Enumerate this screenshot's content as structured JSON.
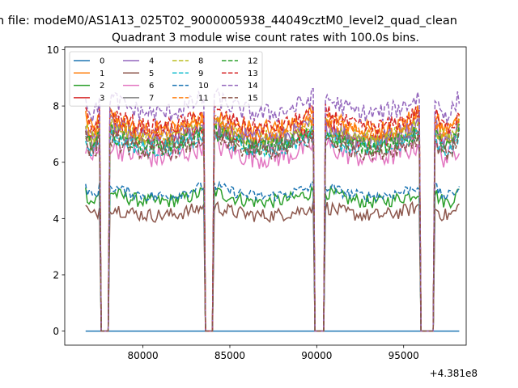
{
  "suptitle": "n file: modeM0/AS1A13_025T02_9000005938_44049cztM0_level2_quad_clean",
  "chart_data": {
    "type": "line",
    "title": "Quadrant 3 module wise count rates with 100.0s bins.",
    "xlabel": "",
    "ylabel": "",
    "x_offset_label": "+4.381e8",
    "xlim": [
      75500,
      98600
    ],
    "ylim": [
      -0.5,
      10.1
    ],
    "xticks": [
      80000,
      85000,
      90000,
      95000
    ],
    "xtick_labels": [
      "80000",
      "85000",
      "90000",
      "95000"
    ],
    "yticks": [
      0,
      2,
      4,
      6,
      8,
      10
    ],
    "ytick_labels": [
      "0",
      "2",
      "4",
      "6",
      "8",
      "10"
    ],
    "grid": false,
    "legend": {
      "placement": "top-left",
      "columns": 4
    },
    "x_start": 76700,
    "x_end": 98200,
    "bin_seconds": 100,
    "gaps": [
      [
        77550,
        78050
      ],
      [
        83550,
        84100
      ],
      [
        89850,
        90450
      ],
      [
        95900,
        96750
      ]
    ],
    "series": [
      {
        "name": "0",
        "color": "#1f77b4",
        "dash": "solid",
        "base": 0.0,
        "noise": 0.0
      },
      {
        "name": "1",
        "color": "#ff7f0e",
        "dash": "solid",
        "base": 7.3,
        "noise": 0.35
      },
      {
        "name": "2",
        "color": "#2ca02c",
        "dash": "solid",
        "base": 4.7,
        "noise": 0.25
      },
      {
        "name": "3",
        "color": "#d62728",
        "dash": "solid",
        "base": 6.9,
        "noise": 0.3
      },
      {
        "name": "4",
        "color": "#9467bd",
        "dash": "solid",
        "base": 7.0,
        "noise": 0.35
      },
      {
        "name": "5",
        "color": "#8c564b",
        "dash": "solid",
        "base": 4.2,
        "noise": 0.25
      },
      {
        "name": "6",
        "color": "#e377c2",
        "dash": "solid",
        "base": 6.3,
        "noise": 0.4
      },
      {
        "name": "7",
        "color": "#7f7f7f",
        "dash": "solid",
        "base": 6.8,
        "noise": 0.3
      },
      {
        "name": "8",
        "color": "#bcbd22",
        "dash": "dashed",
        "base": 7.0,
        "noise": 0.3
      },
      {
        "name": "9",
        "color": "#17becf",
        "dash": "dashed",
        "base": 6.6,
        "noise": 0.3
      },
      {
        "name": "10",
        "color": "#1f77b4",
        "dash": "dashed",
        "base": 4.9,
        "noise": 0.2
      },
      {
        "name": "11",
        "color": "#ff7f0e",
        "dash": "dashed",
        "base": 7.2,
        "noise": 0.3
      },
      {
        "name": "12",
        "color": "#2ca02c",
        "dash": "dashed",
        "base": 6.7,
        "noise": 0.3
      },
      {
        "name": "13",
        "color": "#d62728",
        "dash": "dashed",
        "base": 7.4,
        "noise": 0.3
      },
      {
        "name": "14",
        "color": "#9467bd",
        "dash": "dashed",
        "base": 7.9,
        "noise": 0.35
      },
      {
        "name": "15",
        "color": "#8c564b",
        "dash": "dashed",
        "base": 6.5,
        "noise": 0.3
      }
    ]
  }
}
